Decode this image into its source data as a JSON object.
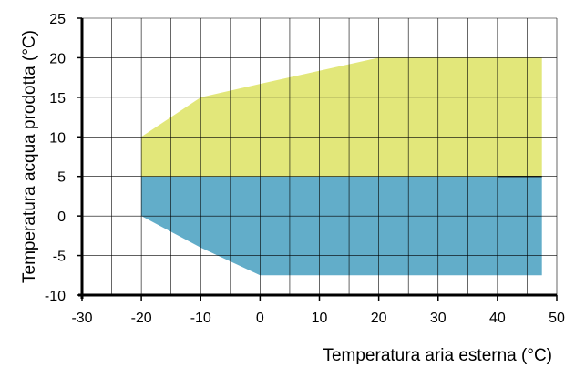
{
  "chart_data": {
    "type": "area",
    "title": "",
    "xlabel": "Temperatura aria esterna (°C)",
    "ylabel": "Temperatura acqua prodotta (°C)",
    "xlim": [
      -30,
      50
    ],
    "ylim": [
      -10,
      25
    ],
    "x_ticks": [
      -30,
      -20,
      -10,
      0,
      10,
      20,
      30,
      40,
      50
    ],
    "y_ticks": [
      -10,
      -5,
      0,
      5,
      10,
      15,
      20,
      25
    ],
    "grid": true,
    "grid_x_step": 5,
    "grid_y_step": 5,
    "legend": "none",
    "regions": [
      {
        "color": "#e2e77a",
        "points": [
          [
            -20,
            5
          ],
          [
            -20,
            10
          ],
          [
            -10,
            15
          ],
          [
            0,
            16.7
          ],
          [
            20,
            20
          ],
          [
            47.5,
            20
          ],
          [
            47.5,
            5
          ]
        ]
      },
      {
        "color": "#62adc9",
        "points": [
          [
            -20,
            0
          ],
          [
            -20,
            5
          ],
          [
            47.5,
            5
          ],
          [
            47.5,
            -7.5
          ],
          [
            0,
            -7.5
          ],
          [
            -10,
            -4
          ]
        ]
      }
    ],
    "region_boundary": {
      "x_start": 40,
      "x_end": 47.5,
      "y": 5
    }
  }
}
